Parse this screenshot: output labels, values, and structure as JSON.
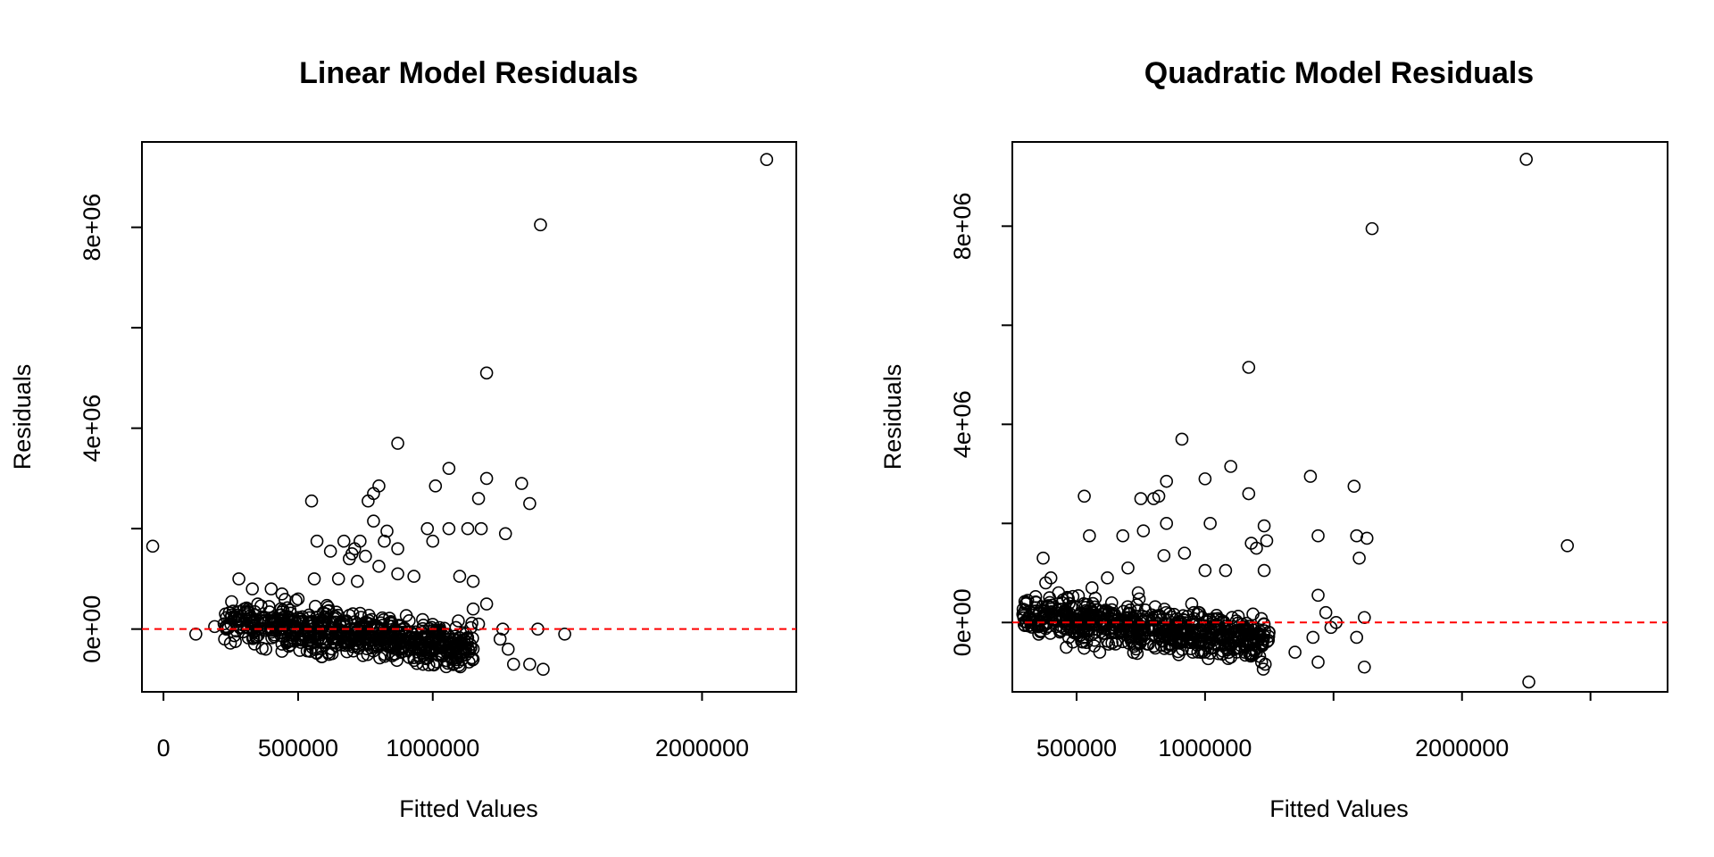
{
  "chart_data": [
    {
      "type": "scatter",
      "title": "Linear Model Residuals",
      "xlabel": "Fitted Values",
      "ylabel": "Residuals",
      "xlim": [
        -80000,
        2350000
      ],
      "ylim": [
        -1250000,
        9700000
      ],
      "xticks": [
        0,
        500000,
        1000000,
        2000000
      ],
      "xtick_labels": [
        "0",
        "500000",
        "1000000",
        "2000000"
      ],
      "yticks": [
        0,
        2000000,
        4000000,
        6000000,
        8000000
      ],
      "ytick_labels": [
        "0e+00",
        "",
        "4e+06",
        "",
        "8e+06"
      ],
      "reference_line": {
        "y": 0,
        "color": "#ff0000",
        "style": "dashed"
      },
      "points": [
        [
          -40000,
          1650000
        ],
        [
          2240000,
          9350000
        ],
        [
          1400000,
          8050000
        ],
        [
          1200000,
          5100000
        ],
        [
          870000,
          3700000
        ],
        [
          1060000,
          3200000
        ],
        [
          1200000,
          3000000
        ],
        [
          1330000,
          2900000
        ],
        [
          1010000,
          2850000
        ],
        [
          800000,
          2850000
        ],
        [
          780000,
          2700000
        ],
        [
          550000,
          2550000
        ],
        [
          760000,
          2550000
        ],
        [
          1170000,
          2600000
        ],
        [
          1360000,
          2500000
        ],
        [
          780000,
          2150000
        ],
        [
          830000,
          1950000
        ],
        [
          980000,
          2000000
        ],
        [
          1060000,
          2000000
        ],
        [
          1130000,
          2000000
        ],
        [
          1180000,
          2000000
        ],
        [
          1270000,
          1900000
        ],
        [
          1000000,
          1750000
        ],
        [
          570000,
          1750000
        ],
        [
          670000,
          1750000
        ],
        [
          730000,
          1750000
        ],
        [
          820000,
          1750000
        ],
        [
          870000,
          1600000
        ],
        [
          710000,
          1600000
        ],
        [
          620000,
          1550000
        ],
        [
          700000,
          1500000
        ],
        [
          750000,
          1450000
        ],
        [
          690000,
          1400000
        ],
        [
          800000,
          1250000
        ],
        [
          870000,
          1100000
        ],
        [
          930000,
          1050000
        ],
        [
          1100000,
          1050000
        ],
        [
          1150000,
          950000
        ],
        [
          560000,
          1000000
        ],
        [
          650000,
          1000000
        ],
        [
          720000,
          950000
        ],
        [
          1200000,
          500000
        ],
        [
          1150000,
          400000
        ],
        [
          1170000,
          100000
        ],
        [
          1260000,
          0
        ],
        [
          1390000,
          0
        ],
        [
          1490000,
          -100000
        ],
        [
          1250000,
          -200000
        ],
        [
          1280000,
          -400000
        ],
        [
          1300000,
          -700000
        ],
        [
          1360000,
          -700000
        ],
        [
          1410000,
          -800000
        ],
        [
          1150000,
          -600000
        ],
        [
          1120000,
          -400000
        ],
        [
          1050000,
          -750000
        ],
        [
          120000,
          -100000
        ],
        [
          190000,
          50000
        ],
        [
          230000,
          300000
        ],
        [
          260000,
          200000
        ],
        [
          280000,
          1000000
        ],
        [
          330000,
          800000
        ],
        [
          400000,
          800000
        ],
        [
          440000,
          700000
        ],
        [
          500000,
          600000
        ],
        [
          350000,
          500000
        ],
        [
          300000,
          400000
        ],
        [
          380000,
          -400000
        ],
        [
          440000,
          -300000
        ]
      ]
    },
    {
      "type": "scatter",
      "title": "Quadratic Model Residuals",
      "xlabel": "Fitted Values",
      "ylabel": "Residuals",
      "xlim": [
        250000,
        2800000
      ],
      "ylim": [
        -1400000,
        9700000
      ],
      "xticks": [
        500000,
        1000000,
        1500000,
        2000000,
        2500000
      ],
      "xtick_labels": [
        "500000",
        "1000000",
        "",
        "2000000",
        ""
      ],
      "yticks": [
        0,
        2000000,
        4000000,
        6000000,
        8000000
      ],
      "ytick_labels": [
        "0e+00",
        "",
        "4e+06",
        "",
        "8e+06"
      ],
      "reference_line": {
        "y": 0,
        "color": "#ff0000",
        "style": "dashed"
      },
      "points": [
        [
          2250000,
          9350000
        ],
        [
          1650000,
          7950000
        ],
        [
          1170000,
          5150000
        ],
        [
          910000,
          3700000
        ],
        [
          1100000,
          3150000
        ],
        [
          1410000,
          2950000
        ],
        [
          1580000,
          2750000
        ],
        [
          1000000,
          2900000
        ],
        [
          850000,
          2850000
        ],
        [
          530000,
          2550000
        ],
        [
          820000,
          2550000
        ],
        [
          800000,
          2500000
        ],
        [
          1170000,
          2600000
        ],
        [
          750000,
          2500000
        ],
        [
          2410000,
          1550000
        ],
        [
          1590000,
          1750000
        ],
        [
          1630000,
          1700000
        ],
        [
          1440000,
          1750000
        ],
        [
          1600000,
          1300000
        ],
        [
          1230000,
          1950000
        ],
        [
          1240000,
          1650000
        ],
        [
          1020000,
          2000000
        ],
        [
          850000,
          2000000
        ],
        [
          920000,
          1400000
        ],
        [
          840000,
          1350000
        ],
        [
          760000,
          1850000
        ],
        [
          550000,
          1750000
        ],
        [
          680000,
          1750000
        ],
        [
          1200000,
          1500000
        ],
        [
          1180000,
          1600000
        ],
        [
          1230000,
          1050000
        ],
        [
          1080000,
          1050000
        ],
        [
          1000000,
          1050000
        ],
        [
          1440000,
          550000
        ],
        [
          1470000,
          200000
        ],
        [
          1620000,
          100000
        ],
        [
          1510000,
          0
        ],
        [
          1490000,
          -100000
        ],
        [
          1420000,
          -300000
        ],
        [
          1590000,
          -300000
        ],
        [
          1350000,
          -600000
        ],
        [
          1440000,
          -800000
        ],
        [
          1620000,
          -900000
        ],
        [
          2260000,
          -1200000
        ],
        [
          1220000,
          -800000
        ],
        [
          1200000,
          -600000
        ],
        [
          1100000,
          -700000
        ],
        [
          1000000,
          -600000
        ],
        [
          590000,
          -600000
        ],
        [
          460000,
          -500000
        ],
        [
          340000,
          300000
        ],
        [
          370000,
          1300000
        ],
        [
          380000,
          800000
        ],
        [
          400000,
          900000
        ],
        [
          430000,
          600000
        ],
        [
          300000,
          250000
        ],
        [
          320000,
          50000
        ],
        [
          560000,
          700000
        ],
        [
          620000,
          900000
        ],
        [
          700000,
          1100000
        ],
        [
          740000,
          600000
        ],
        [
          830000,
          -200000
        ],
        [
          900000,
          -400000
        ]
      ]
    }
  ]
}
